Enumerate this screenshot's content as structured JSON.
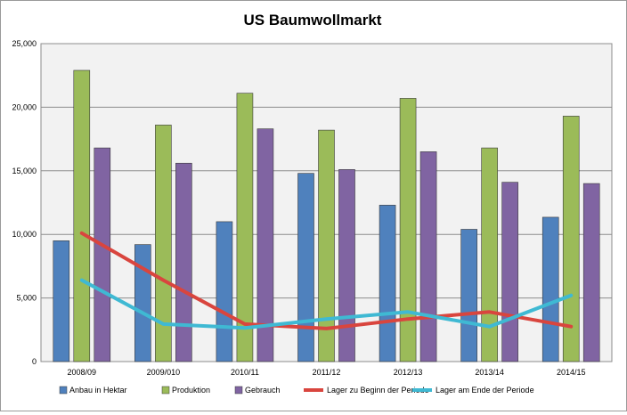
{
  "chart_data": {
    "type": "bar",
    "title": "US Baumwollmarkt",
    "xlabel": "",
    "ylabel": "",
    "categories": [
      "2008/09",
      "2009/010",
      "2010/11",
      "2011/12",
      "2012/13",
      "2013/14",
      "2014/15"
    ],
    "ylim": [
      0,
      25000
    ],
    "yticks": [
      0,
      5000,
      10000,
      15000,
      20000,
      25000
    ],
    "ytick_labels": [
      "0",
      "5,000",
      "10,000",
      "15,000",
      "20,000",
      "25,000"
    ],
    "grid": true,
    "legend_position": "bottom",
    "plot_background": "#f2f2f2",
    "series": [
      {
        "name": "Anbau in Hektar",
        "kind": "bar",
        "color": "#4f81bd",
        "values": [
          9500,
          9200,
          11000,
          14800,
          12300,
          10400,
          11350
        ]
      },
      {
        "name": "Produktion",
        "kind": "bar",
        "color": "#9bbb59",
        "values": [
          22900,
          18600,
          21100,
          18200,
          20700,
          16800,
          19300
        ]
      },
      {
        "name": "Gebrauch",
        "kind": "bar",
        "color": "#8064a2",
        "values": [
          16800,
          15600,
          18300,
          15100,
          16500,
          14100,
          14000
        ]
      },
      {
        "name": "Lager zu Beginn der Periode",
        "kind": "line",
        "color": "#d9453e",
        "values": [
          10100,
          6400,
          2950,
          2600,
          3350,
          3900,
          2750
        ]
      },
      {
        "name": "Lager am Ende der Periode",
        "kind": "line",
        "color": "#3fb9d3",
        "values": [
          6400,
          2950,
          2650,
          3350,
          3900,
          2750,
          5200
        ]
      }
    ]
  }
}
